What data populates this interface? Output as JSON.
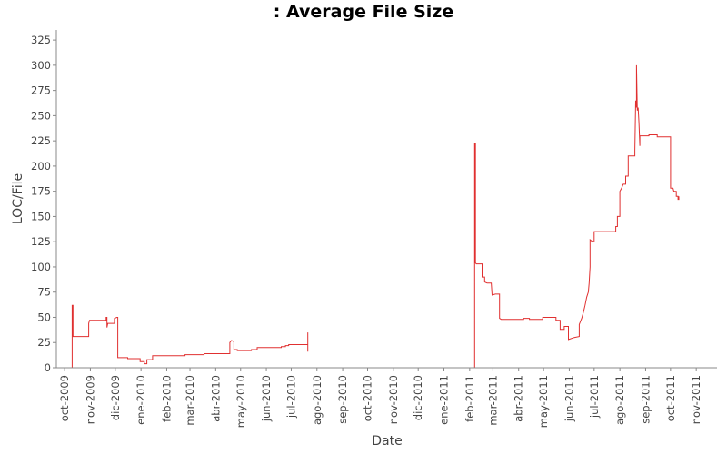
{
  "chart_data": {
    "type": "line",
    "title": ": Average File Size",
    "xlabel": "Date",
    "ylabel": "LOC/File",
    "ylim": [
      0,
      335
    ],
    "yticks": [
      0,
      25,
      50,
      75,
      100,
      125,
      150,
      175,
      200,
      225,
      250,
      275,
      300,
      325
    ],
    "xlim": [
      "2009-09-21",
      "2011-11-26"
    ],
    "xticks": [
      "2009-10-01",
      "2009-11-01",
      "2009-12-01",
      "2010-01-01",
      "2010-02-01",
      "2010-03-01",
      "2010-04-01",
      "2010-05-01",
      "2010-06-01",
      "2010-07-01",
      "2010-08-01",
      "2010-09-01",
      "2010-10-01",
      "2010-11-01",
      "2010-12-01",
      "2011-01-01",
      "2011-02-01",
      "2011-03-01",
      "2011-04-01",
      "2011-05-01",
      "2011-06-01",
      "2011-07-01",
      "2011-08-01",
      "2011-09-01",
      "2011-10-01",
      "2011-11-01"
    ],
    "xtick_labels": [
      "oct-2009",
      "nov-2009",
      "dic-2009",
      "ene-2010",
      "feb-2010",
      "mar-2010",
      "abr-2010",
      "may-2010",
      "jun-2010",
      "jul-2010",
      "ago-2010",
      "sep-2010",
      "oct-2010",
      "nov-2010",
      "dic-2010",
      "ene-2011",
      "feb-2011",
      "mar-2011",
      "abr-2011",
      "may-2011",
      "jun-2011",
      "jul-2011",
      "ago-2011",
      "sep-2011",
      "oct-2011",
      "nov-2011"
    ],
    "series_color": "#e03030",
    "grid": false,
    "series": [
      {
        "segments": [
          [
            [
              "2009-10-10",
              0
            ],
            [
              "2009-10-10",
              62
            ],
            [
              "2009-10-11",
              62
            ],
            [
              "2009-10-11",
              31
            ],
            [
              "2009-10-30",
              31
            ],
            [
              "2009-10-30",
              44
            ],
            [
              "2009-10-31",
              47
            ],
            [
              "2009-11-20",
              47
            ],
            [
              "2009-11-20",
              50
            ],
            [
              "2009-11-21",
              50
            ],
            [
              "2009-11-21",
              40
            ],
            [
              "2009-11-22",
              44
            ],
            [
              "2009-11-30",
              44
            ],
            [
              "2009-11-30",
              49
            ],
            [
              "2009-12-03",
              50
            ],
            [
              "2009-12-04",
              50
            ],
            [
              "2009-12-04",
              10
            ],
            [
              "2009-12-16",
              10
            ],
            [
              "2009-12-16",
              9
            ],
            [
              "2009-12-31",
              9
            ],
            [
              "2009-12-31",
              6
            ],
            [
              "2010-01-05",
              6
            ],
            [
              "2010-01-05",
              4
            ],
            [
              "2010-01-08",
              4
            ],
            [
              "2010-01-08",
              8
            ],
            [
              "2010-01-15",
              8
            ],
            [
              "2010-01-15",
              12
            ],
            [
              "2010-02-23",
              12
            ],
            [
              "2010-02-23",
              13
            ],
            [
              "2010-03-18",
              13
            ],
            [
              "2010-03-18",
              14
            ],
            [
              "2010-04-18",
              14
            ],
            [
              "2010-04-18",
              25
            ],
            [
              "2010-04-20",
              27
            ],
            [
              "2010-04-23",
              26
            ],
            [
              "2010-04-23",
              18
            ],
            [
              "2010-04-27",
              18
            ],
            [
              "2010-04-27",
              17
            ],
            [
              "2010-05-14",
              17
            ],
            [
              "2010-05-14",
              18
            ],
            [
              "2010-05-21",
              18
            ],
            [
              "2010-05-21",
              20
            ],
            [
              "2010-06-19",
              20
            ],
            [
              "2010-06-19",
              21
            ],
            [
              "2010-06-24",
              21
            ],
            [
              "2010-06-24",
              22
            ],
            [
              "2010-06-28",
              22
            ],
            [
              "2010-06-28",
              23
            ],
            [
              "2010-07-21",
              23
            ],
            [
              "2010-07-21",
              35
            ],
            [
              "2010-07-21",
              16
            ]
          ],
          [
            [
              "2011-02-07",
              0
            ],
            [
              "2011-02-07",
              222
            ],
            [
              "2011-02-08",
              222
            ],
            [
              "2011-02-08",
              104
            ],
            [
              "2011-02-09",
              103
            ],
            [
              "2011-02-16",
              103
            ],
            [
              "2011-02-16",
              90
            ],
            [
              "2011-02-19",
              90
            ],
            [
              "2011-02-19",
              85
            ],
            [
              "2011-02-22",
              84
            ],
            [
              "2011-02-27",
              84
            ],
            [
              "2011-02-28",
              72
            ],
            [
              "2011-03-04",
              73
            ],
            [
              "2011-03-09",
              73
            ],
            [
              "2011-03-09",
              49
            ],
            [
              "2011-03-11",
              48
            ],
            [
              "2011-04-07",
              48
            ],
            [
              "2011-04-07",
              49
            ],
            [
              "2011-04-14",
              49
            ],
            [
              "2011-04-14",
              48
            ],
            [
              "2011-04-30",
              48
            ],
            [
              "2011-04-30",
              50
            ],
            [
              "2011-05-16",
              50
            ],
            [
              "2011-05-16",
              47
            ],
            [
              "2011-05-21",
              47
            ],
            [
              "2011-05-21",
              38
            ],
            [
              "2011-05-26",
              38
            ],
            [
              "2011-05-26",
              41
            ],
            [
              "2011-05-31",
              41
            ],
            [
              "2011-05-31",
              28
            ],
            [
              "2011-06-07",
              30
            ],
            [
              "2011-06-13",
              31
            ],
            [
              "2011-06-13",
              43
            ],
            [
              "2011-06-16",
              49
            ],
            [
              "2011-06-18",
              55
            ],
            [
              "2011-06-20",
              62
            ],
            [
              "2011-06-22",
              70
            ],
            [
              "2011-06-24",
              75
            ],
            [
              "2011-06-25",
              84
            ],
            [
              "2011-06-26",
              100
            ],
            [
              "2011-06-26",
              127
            ],
            [
              "2011-06-29",
              125
            ],
            [
              "2011-07-01",
              125
            ],
            [
              "2011-07-01",
              135
            ],
            [
              "2011-07-27",
              135
            ],
            [
              "2011-07-27",
              140
            ],
            [
              "2011-07-29",
              140
            ],
            [
              "2011-07-29",
              150
            ],
            [
              "2011-08-01",
              150
            ],
            [
              "2011-08-01",
              175
            ],
            [
              "2011-08-03",
              178
            ],
            [
              "2011-08-05",
              182
            ],
            [
              "2011-08-08",
              182
            ],
            [
              "2011-08-08",
              190
            ],
            [
              "2011-08-11",
              190
            ],
            [
              "2011-08-11",
              210
            ],
            [
              "2011-08-19",
              210
            ],
            [
              "2011-08-19",
              215
            ],
            [
              "2011-08-20",
              265
            ],
            [
              "2011-08-21",
              258
            ],
            [
              "2011-08-21",
              300
            ],
            [
              "2011-08-22",
              255
            ],
            [
              "2011-08-23",
              258
            ],
            [
              "2011-08-24",
              243
            ],
            [
              "2011-08-25",
              220
            ],
            [
              "2011-08-25",
              230
            ],
            [
              "2011-09-05",
              230
            ],
            [
              "2011-09-05",
              231
            ],
            [
              "2011-09-15",
              231
            ],
            [
              "2011-09-15",
              229
            ],
            [
              "2011-10-01",
              229
            ],
            [
              "2011-10-01",
              178
            ],
            [
              "2011-10-04",
              178
            ],
            [
              "2011-10-05",
              175
            ],
            [
              "2011-10-08",
              175
            ],
            [
              "2011-10-08",
              170
            ],
            [
              "2011-10-10",
              170
            ],
            [
              "2011-10-10",
              167
            ],
            [
              "2011-10-11",
              167
            ],
            [
              "2011-10-11",
              170
            ]
          ]
        ]
      }
    ]
  }
}
